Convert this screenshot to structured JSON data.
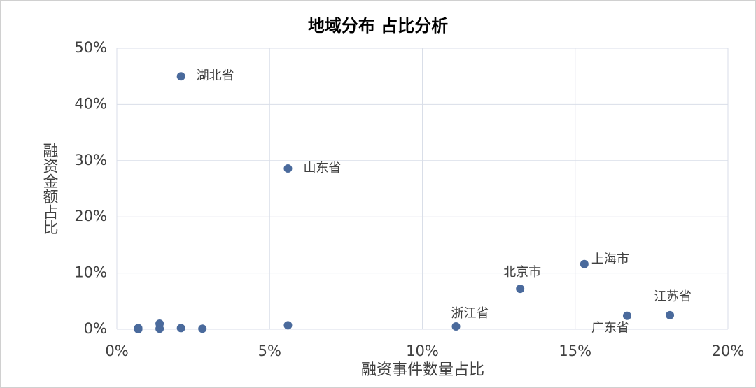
{
  "chart_data": {
    "type": "scatter",
    "title": "地域分布 占比分析",
    "x_label": "融资事件数量占比",
    "y_label": "融资金额占比",
    "series": [
      {
        "color": "#4a6a9c",
        "x": [
          2.1,
          5.6,
          11.1,
          13.2,
          15.3,
          16.7,
          18.1,
          0.7,
          0.7,
          1.4,
          1.4,
          2.1,
          2.8,
          5.6
        ],
        "values": [
          45.0,
          28.6,
          0.5,
          7.2,
          11.6,
          2.4,
          2.5,
          0.2,
          0.0,
          1.0,
          0.1,
          0.2,
          0.1,
          0.7
        ],
        "labels": [
          "湖北省",
          "山东省",
          "浙江省",
          "北京市",
          "上海市",
          "广东省",
          "江苏省",
          null,
          null,
          null,
          null,
          null,
          null,
          null
        ]
      }
    ],
    "xlim": [
      0,
      20
    ],
    "ylim": [
      0,
      50
    ],
    "xticks": [
      {
        "value": 0,
        "label": "0%"
      },
      {
        "value": 5,
        "label": "5%"
      },
      {
        "value": 10,
        "label": "10%"
      },
      {
        "value": 15,
        "label": "15%"
      },
      {
        "value": 20,
        "label": "20%"
      }
    ],
    "yticks": [
      {
        "value": 0,
        "label": "0%"
      },
      {
        "value": 10,
        "label": "10%"
      },
      {
        "value": 20,
        "label": "20%"
      },
      {
        "value": 30,
        "label": "30%"
      },
      {
        "value": 40,
        "label": "40%"
      },
      {
        "value": 50,
        "label": "50%"
      }
    ],
    "grid": true
  }
}
